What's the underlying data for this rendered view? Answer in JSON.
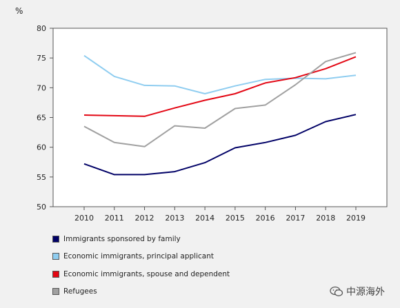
{
  "chart_data": {
    "type": "line",
    "title": "",
    "xlabel": "",
    "ylabel": "%",
    "x": [
      "2010",
      "2011",
      "2012",
      "2013",
      "2014",
      "2015",
      "2016",
      "2017",
      "2018",
      "2019"
    ],
    "ylim": [
      50,
      80
    ],
    "yticks": [
      50,
      55,
      60,
      65,
      70,
      75,
      80
    ],
    "grid": false,
    "legend_position": "bottom",
    "series": [
      {
        "name": "Immigrants sponsored by family",
        "color": "#000066",
        "values": [
          57.2,
          55.4,
          55.4,
          55.9,
          57.4,
          59.9,
          60.8,
          62.0,
          64.3,
          65.5
        ]
      },
      {
        "name": "Economic immigrants, principal applicant",
        "color": "#8fcdf0",
        "values": [
          75.4,
          71.9,
          70.4,
          70.3,
          69.0,
          70.3,
          71.4,
          71.6,
          71.5,
          72.1
        ]
      },
      {
        "name": "Economic immigrants, spouse and dependent",
        "color": "#e30613",
        "values": [
          65.4,
          65.3,
          65.2,
          66.6,
          67.9,
          69.0,
          70.8,
          71.7,
          73.2,
          75.2
        ]
      },
      {
        "name": "Refugees",
        "color": "#a0a0a0",
        "values": [
          63.5,
          60.8,
          60.1,
          63.6,
          63.2,
          66.5,
          67.1,
          70.5,
          74.4,
          75.9
        ]
      }
    ]
  },
  "watermark": {
    "text": "中源海外",
    "icon": "wechat-icon"
  }
}
